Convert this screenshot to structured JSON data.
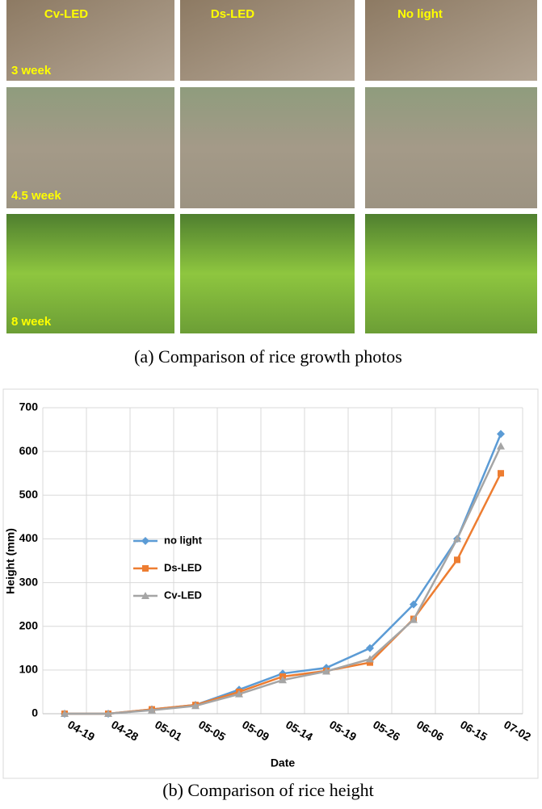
{
  "figure": {
    "column_labels": [
      "Cv-LED",
      "Ds-LED",
      "No light"
    ],
    "row_labels": [
      "3 week",
      "4.5 week",
      "8 week"
    ],
    "photo_caption": "(a)  Comparison  of  rice  growth  photos",
    "chart_caption": "(b)  Comparison  of  rice  height"
  },
  "chart_data": {
    "type": "line",
    "x_label": "Date",
    "y_label": "Height (mm)",
    "categories": [
      "04-19",
      "04-28",
      "05-01",
      "05-05",
      "05-09",
      "05-14",
      "05-19",
      "05-26",
      "06-06",
      "06-15",
      "07-02"
    ],
    "series": [
      {
        "name": "no light",
        "color": "#5b9bd5",
        "marker": "diamond",
        "values": [
          0,
          0,
          10,
          20,
          55,
          92,
          105,
          150,
          250,
          400,
          640
        ]
      },
      {
        "name": "Ds-LED",
        "color": "#ed7d31",
        "marker": "square",
        "values": [
          0,
          0,
          10,
          20,
          50,
          85,
          98,
          117,
          217,
          352,
          550
        ]
      },
      {
        "name": "Cv-LED",
        "color": "#a5a5a5",
        "marker": "triangle",
        "values": [
          0,
          0,
          8,
          18,
          45,
          77,
          97,
          125,
          215,
          400,
          612
        ]
      }
    ],
    "ylim": [
      0,
      700
    ],
    "yticks": [
      0,
      100,
      200,
      300,
      400,
      500,
      600,
      700
    ],
    "grid": true,
    "legend": "left"
  }
}
